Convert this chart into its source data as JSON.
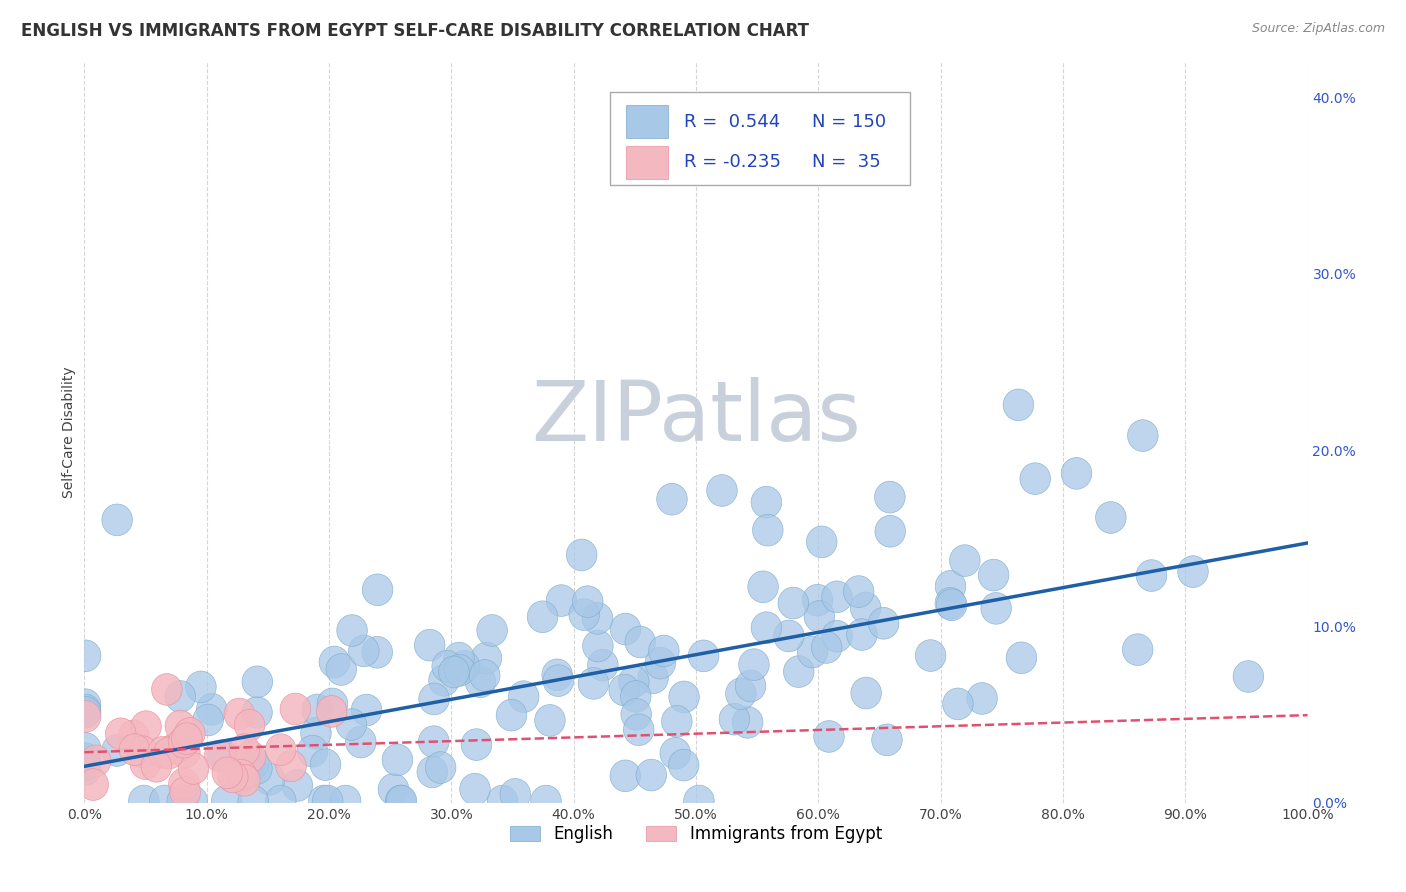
{
  "title": "ENGLISH VS IMMIGRANTS FROM EGYPT SELF-CARE DISABILITY CORRELATION CHART",
  "source": "Source: ZipAtlas.com",
  "ylabel": "Self-Care Disability",
  "xlim": [
    0.0,
    1.0
  ],
  "ylim": [
    0.0,
    0.42
  ],
  "xticks": [
    0.0,
    0.1,
    0.2,
    0.3,
    0.4,
    0.5,
    0.6,
    0.7,
    0.8,
    0.9,
    1.0
  ],
  "xticklabels": [
    "0.0%",
    "10.0%",
    "20.0%",
    "30.0%",
    "40.0%",
    "50.0%",
    "60.0%",
    "70.0%",
    "80.0%",
    "90.0%",
    "100.0%"
  ],
  "yticks": [
    0.0,
    0.1,
    0.2,
    0.3,
    0.4
  ],
  "yticklabels": [
    "0.0%",
    "10.0%",
    "20.0%",
    "30.0%",
    "40.0%"
  ],
  "english_color": "#a8c8e8",
  "egypt_color": "#f4b8c0",
  "english_edge_color": "#7aaac8",
  "egypt_edge_color": "#e890a0",
  "english_line_color": "#1f5fa6",
  "egypt_line_color": "#e05070",
  "R_english": 0.544,
  "N_english": 150,
  "R_egypt": -0.235,
  "N_egypt": 35,
  "legend_label_english": "English",
  "legend_label_egypt": "Immigrants from Egypt",
  "watermark": "ZIPatlas",
  "watermark_color": "#c8d0dc",
  "grid_color": "#cccccc",
  "background_color": "#ffffff",
  "title_fontsize": 12,
  "axis_fontsize": 10,
  "tick_fontsize": 10,
  "legend_fontsize": 13
}
